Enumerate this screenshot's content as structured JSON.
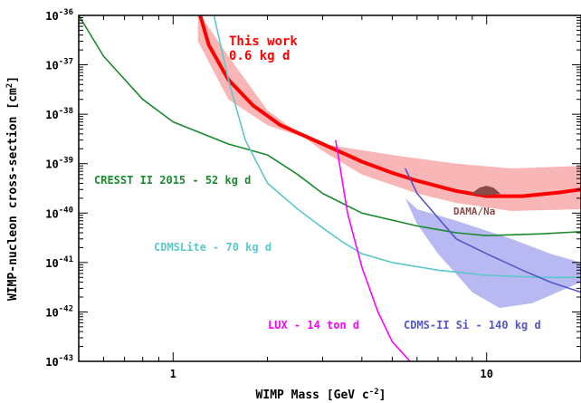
{
  "chart_data": {
    "type": "line",
    "xlabel": "WIMP Mass [GeV c",
    "xlabel_sup": "-2",
    "xlabel_end": "]",
    "ylabel": "WIMP-nucleon cross-section [cm",
    "ylabel_sup": "2",
    "ylabel_end": "]",
    "x_scale": "log",
    "y_scale": "log",
    "xlim": [
      0.5,
      20
    ],
    "ylim": [
      1e-43,
      1e-36
    ],
    "grid": false,
    "x_ticks": [
      {
        "value": 1,
        "label": "1"
      },
      {
        "value": 10,
        "label": "10"
      }
    ],
    "y_ticks": [
      {
        "value": 1e-36,
        "base": "10",
        "exp": "-36"
      },
      {
        "value": 1e-37,
        "base": "10",
        "exp": "-37"
      },
      {
        "value": 1e-38,
        "base": "10",
        "exp": "-38"
      },
      {
        "value": 1e-39,
        "base": "10",
        "exp": "-39"
      },
      {
        "value": 1e-40,
        "base": "10",
        "exp": "-40"
      },
      {
        "value": 1e-41,
        "base": "10",
        "exp": "-41"
      },
      {
        "value": 1e-42,
        "base": "10",
        "exp": "-42"
      },
      {
        "value": 1e-43,
        "base": "10",
        "exp": "-43"
      }
    ],
    "series": [
      {
        "name": "This work 0.6 kg d",
        "label_lines": [
          "This work",
          "0.6 kg d"
        ],
        "color": "#ff0000",
        "band_color": "#f9b6b6",
        "points": [
          [
            1.22,
            1e-36
          ],
          [
            1.3,
            2.5e-37
          ],
          [
            1.5,
            5e-38
          ],
          [
            1.8,
            1.5e-38
          ],
          [
            2.2,
            6e-39
          ],
          [
            3,
            2.5e-39
          ],
          [
            4,
            1.1e-39
          ],
          [
            5,
            6.5e-40
          ],
          [
            6,
            4.5e-40
          ],
          [
            8,
            2.8e-40
          ],
          [
            10,
            2.2e-40
          ],
          [
            13,
            2.2e-40
          ],
          [
            17,
            2.6e-40
          ],
          [
            20,
            3e-40
          ]
        ],
        "band_upper": [
          [
            1.2,
            3e-37
          ],
          [
            1.5,
            2e-38
          ],
          [
            2,
            6e-39
          ],
          [
            3,
            2.5e-39
          ],
          [
            5,
            1.5e-39
          ],
          [
            8,
            1e-39
          ],
          [
            12,
            8e-40
          ],
          [
            20,
            9e-40
          ]
        ],
        "band_lower": [
          [
            1.2,
            1.2e-36
          ],
          [
            1.5,
            1.5e-37
          ],
          [
            2,
            1.2e-38
          ],
          [
            3,
            1.8e-39
          ],
          [
            4,
            6e-40
          ],
          [
            6,
            2.5e-40
          ],
          [
            8,
            1.6e-40
          ],
          [
            12,
            1.1e-40
          ],
          [
            20,
            1.2e-40
          ]
        ]
      },
      {
        "name": "CRESST II 2015 - 52 kg d",
        "color": "#1a8a2e",
        "points": [
          [
            0.5,
            1e-36
          ],
          [
            0.6,
            1.5e-37
          ],
          [
            0.8,
            2e-38
          ],
          [
            1,
            7e-39
          ],
          [
            1.5,
            2.5e-39
          ],
          [
            2,
            1.5e-39
          ],
          [
            2.5,
            6e-40
          ],
          [
            3,
            2.5e-40
          ],
          [
            4,
            1e-40
          ],
          [
            6,
            5.5e-41
          ],
          [
            8,
            4e-41
          ],
          [
            10,
            3.5e-41
          ],
          [
            15,
            3.8e-41
          ],
          [
            20,
            4.2e-41
          ]
        ]
      },
      {
        "name": "CDMSLite - 70 kg d",
        "color": "#5cc8c8",
        "points": [
          [
            1.35,
            1e-36
          ],
          [
            1.5,
            5e-38
          ],
          [
            1.7,
            3e-39
          ],
          [
            2,
            4e-40
          ],
          [
            2.5,
            1.2e-40
          ],
          [
            3,
            5e-41
          ],
          [
            3.5,
            2.5e-41
          ],
          [
            4,
            1.5e-41
          ],
          [
            5,
            1e-41
          ],
          [
            7,
            7e-42
          ],
          [
            10,
            5.5e-42
          ],
          [
            15,
            5e-42
          ],
          [
            20,
            5e-42
          ]
        ]
      },
      {
        "name": "LUX - 14 ton d",
        "color": "#ff00ff",
        "points": [
          [
            3.3,
            3e-39
          ],
          [
            3.6,
            1e-40
          ],
          [
            4,
            8e-42
          ],
          [
            4.5,
            1e-42
          ],
          [
            5,
            2.5e-43
          ],
          [
            5.7,
            1e-43
          ]
        ]
      },
      {
        "name": "CDMS-II Si - 140 kg d",
        "color": "#5555cc",
        "band_color": "#b8b8f2",
        "points": [
          [
            5.5,
            8e-40
          ],
          [
            6,
            2.5e-40
          ],
          [
            7,
            8e-41
          ],
          [
            8,
            3e-41
          ],
          [
            10,
            1.5e-41
          ],
          [
            13,
            7e-42
          ],
          [
            16,
            4e-42
          ],
          [
            20,
            2.5e-42
          ]
        ],
        "band_upper": [
          [
            5.5,
            2e-40
          ],
          [
            6,
            1.2e-40
          ],
          [
            8,
            7e-41
          ],
          [
            12,
            3e-41
          ],
          [
            16,
            1.5e-41
          ],
          [
            20,
            1e-41
          ]
        ],
        "band_lower": [
          [
            5.5,
            2e-40
          ],
          [
            6,
            6e-41
          ],
          [
            7,
            1.5e-41
          ],
          [
            9,
            2.5e-42
          ],
          [
            11,
            1.2e-42
          ],
          [
            14,
            1.5e-42
          ],
          [
            18,
            3e-42
          ],
          [
            20,
            4e-42
          ]
        ]
      },
      {
        "name": "DAMA/Na",
        "color": "#8a4a4a",
        "points": [
          [
            9,
            2.5e-40
          ],
          [
            9.5,
            3.2e-40
          ],
          [
            10,
            3.5e-40
          ],
          [
            10.5,
            3.2e-40
          ],
          [
            11,
            2.5e-40
          ],
          [
            10,
            2.3e-40
          ],
          [
            9,
            2.5e-40
          ]
        ]
      }
    ]
  }
}
